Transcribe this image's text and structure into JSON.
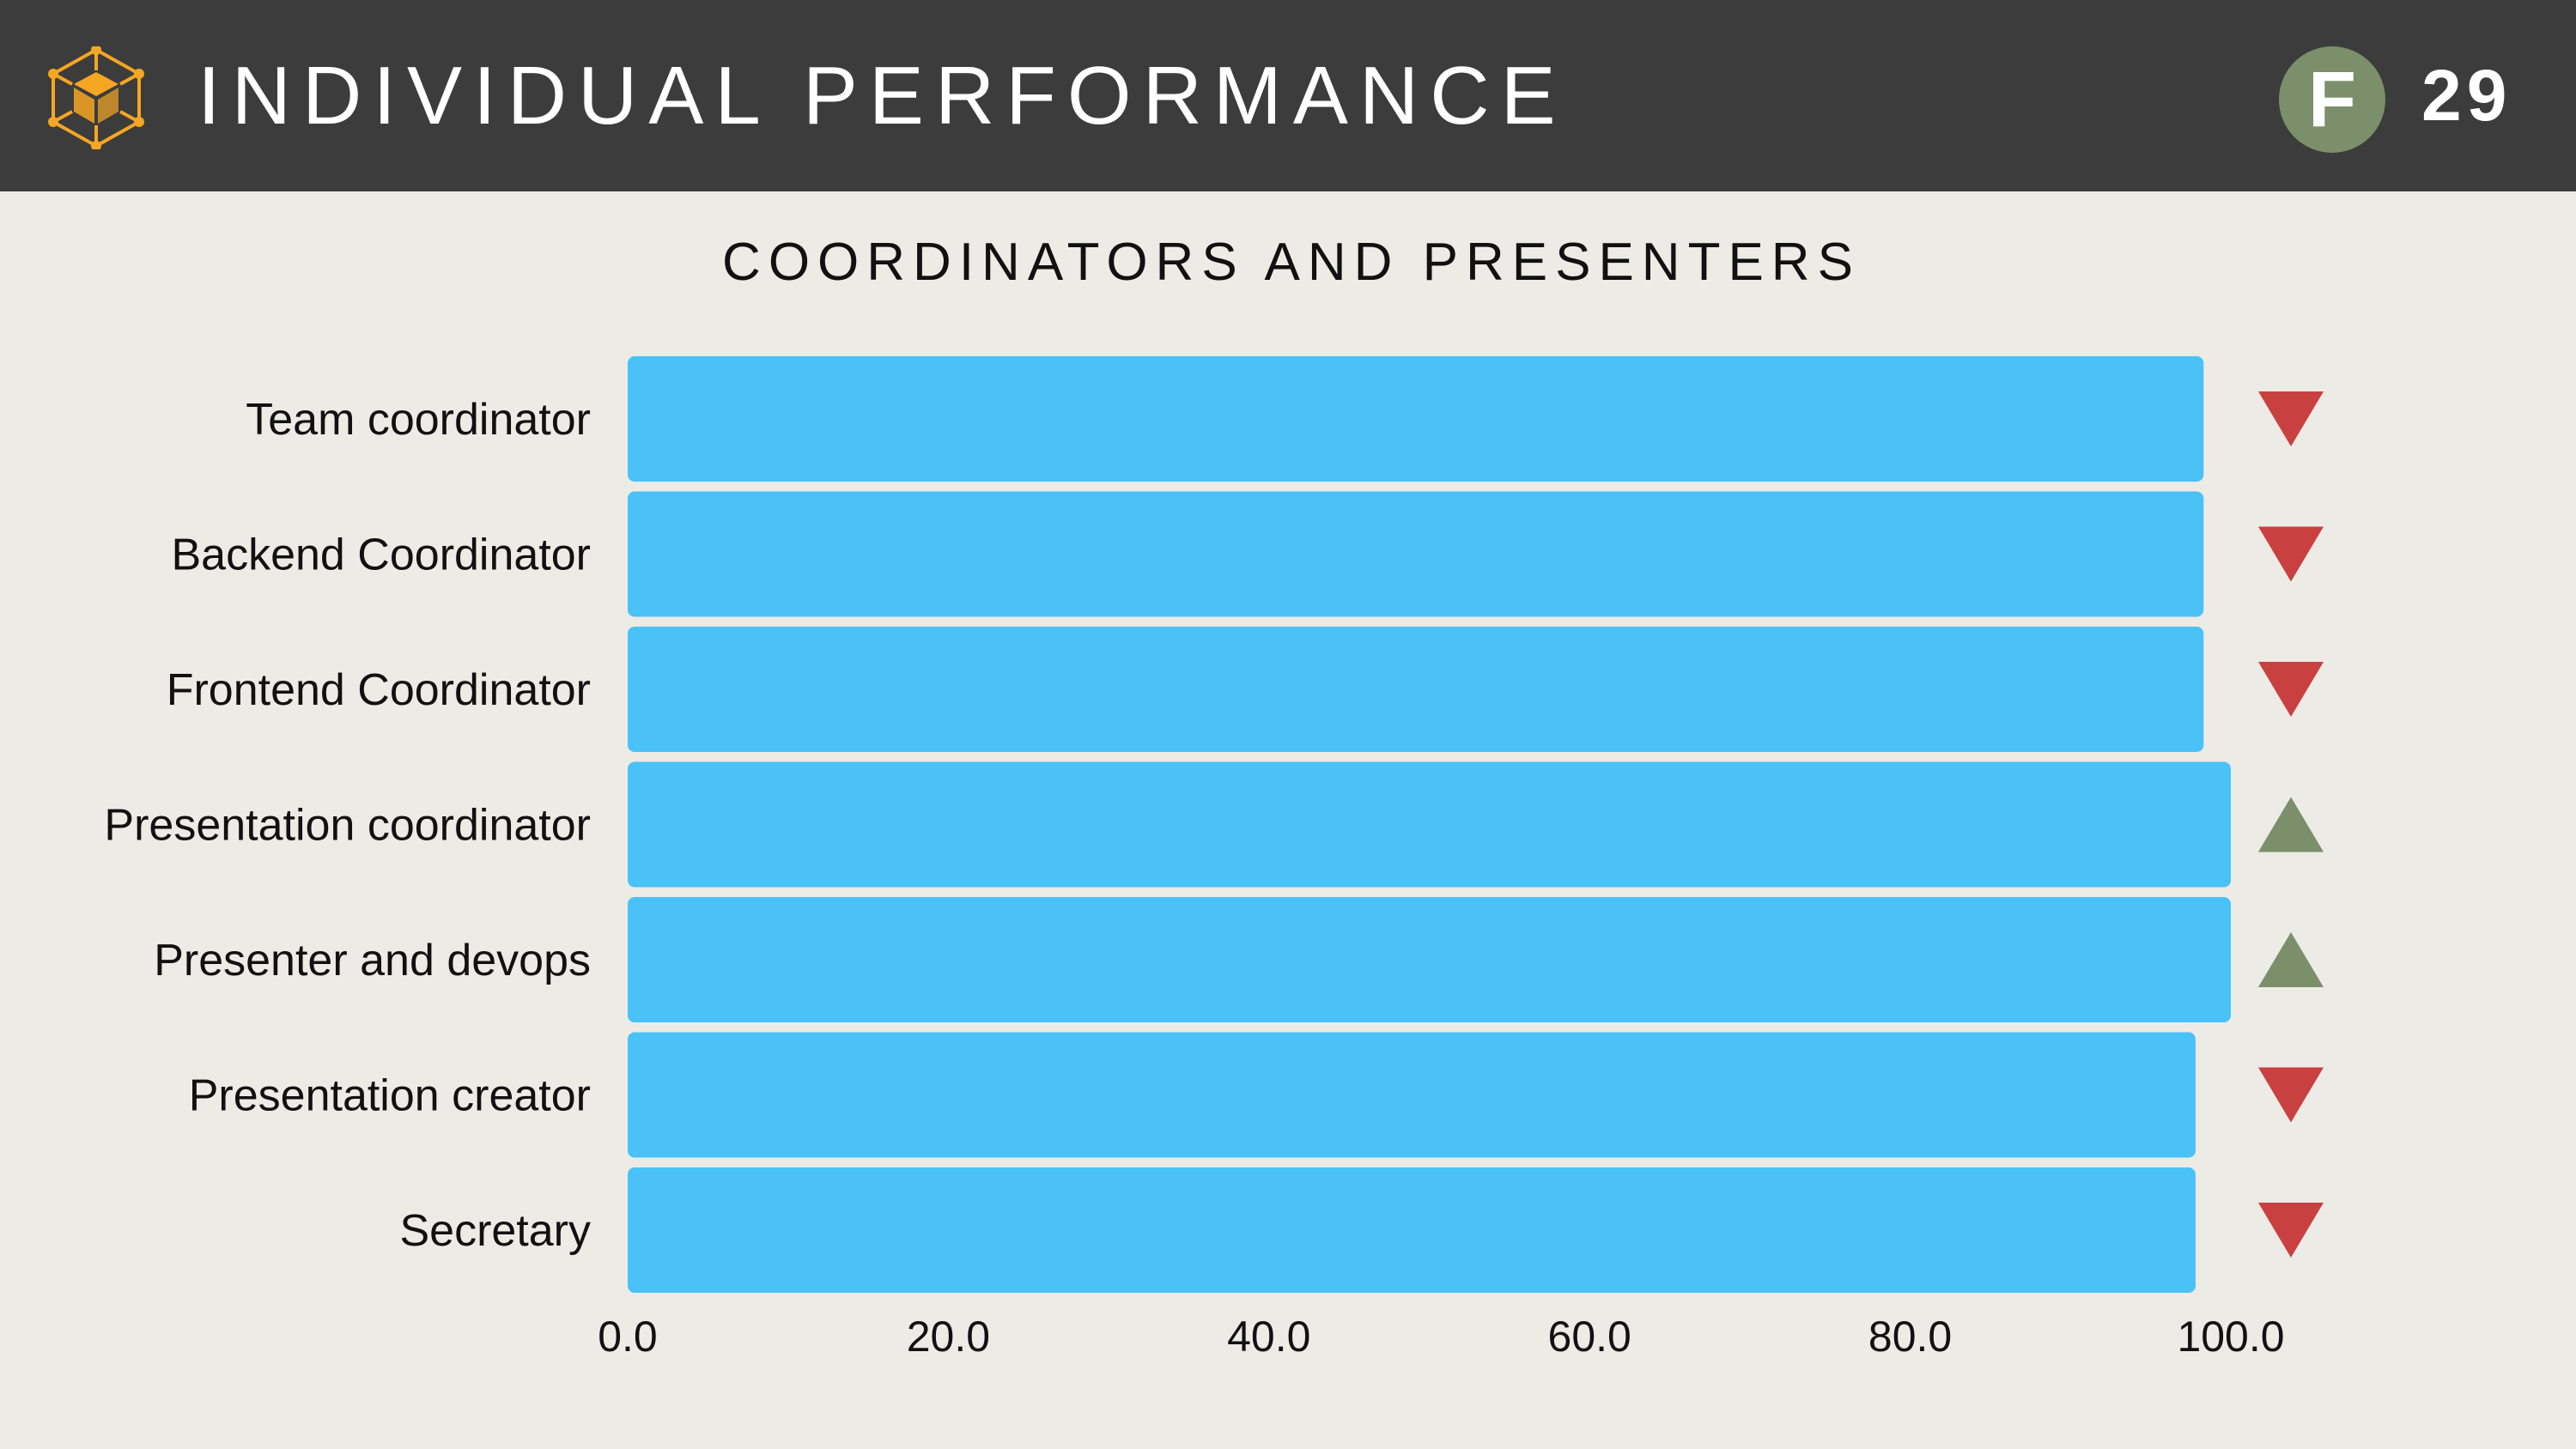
{
  "header": {
    "title": "INDIVIDUAL PERFORMANCE",
    "grade": "F",
    "score": "29",
    "logo_icon": "hexagon-cube-icon"
  },
  "colors": {
    "header_bg": "#3c3c3c",
    "background": "#ecebe6",
    "bar": "#4ac1f7",
    "trend_down": "#c94040",
    "trend_up": "#7a8f6a",
    "logo": "#f5a623",
    "grade_badge": "#7a8f6a"
  },
  "chart_data": {
    "type": "bar",
    "orientation": "horizontal",
    "title": "COORDINATORS AND PRESENTERS",
    "categories": [
      "Team coordinator",
      "Backend Coordinator",
      "Frontend Coordinator",
      "Presentation coordinator",
      "Presenter and devops",
      "Presentation creator",
      "Secretary"
    ],
    "values": [
      98.3,
      98.3,
      98.3,
      100.0,
      100.0,
      97.8,
      97.8
    ],
    "trend": [
      "down",
      "down",
      "down",
      "up",
      "up",
      "down",
      "down"
    ],
    "xlim": [
      0,
      100
    ],
    "xticks": [
      "0.0",
      "20.0",
      "40.0",
      "60.0",
      "80.0",
      "100.0"
    ],
    "xlabel": "",
    "ylabel": "",
    "grid": false,
    "legend": "none"
  }
}
